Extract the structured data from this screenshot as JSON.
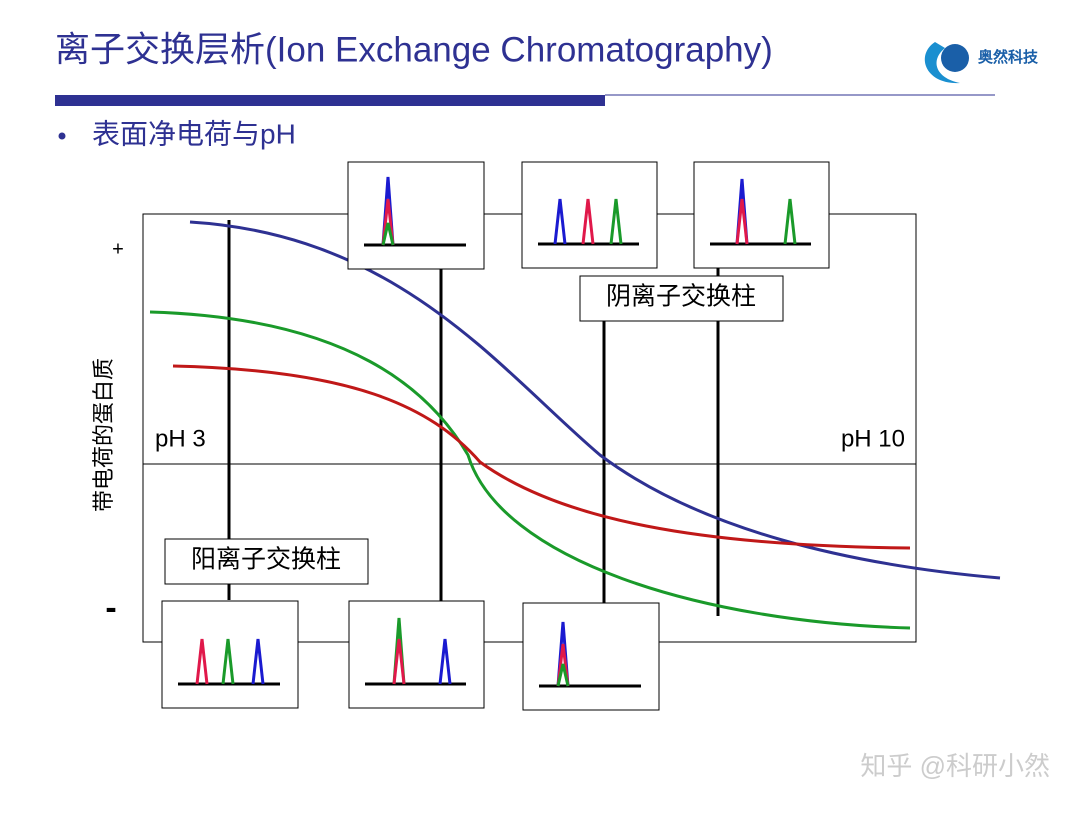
{
  "header": {
    "title": "离子交换层析(Ion Exchange Chromatography)",
    "logo": "奥然科技"
  },
  "bullet": "表面净电荷与pH",
  "diagram": {
    "y_label": "带电荷的蛋白质",
    "plus": "+",
    "minus": "-",
    "ph_low": "pH 3",
    "ph_high": "pH 10",
    "anion_column": "阴离子交换柱",
    "cation_column": "阳离子交换柱"
  },
  "watermark": "知乎 @科研小然"
}
